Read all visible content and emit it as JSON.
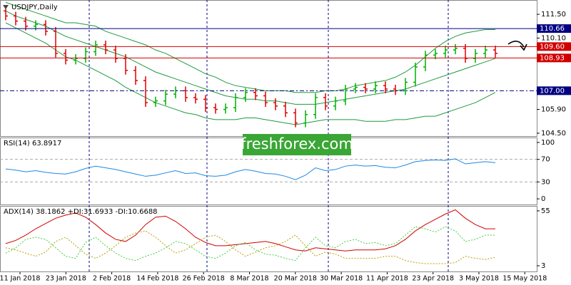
{
  "watermark": "freshforex.com",
  "chart_data": [
    {
      "type": "candlestick",
      "title": "USDJPY,Daily",
      "x_labels": [
        "11 Jan 2018",
        "23 Jan 2018",
        "2 Feb 2018",
        "14 Feb 2018",
        "26 Feb 2018",
        "8 Mar 2018",
        "20 Mar 2018",
        "30 Mar 2018",
        "11 Apr 2018",
        "23 Apr 2018",
        "3 May 2018",
        "15 May 2018"
      ],
      "open": [
        111.7,
        111.4,
        111.1,
        110.8,
        110.9,
        110.5,
        109.2,
        108.8,
        108.9,
        109.3,
        109.7,
        109.4,
        108.9,
        108.2,
        107.6,
        106.3,
        106.4,
        106.8,
        107.0,
        106.6,
        106.5,
        106.0,
        105.9,
        106.0,
        106.6,
        106.9,
        106.7,
        106.3,
        106.1,
        105.7,
        105.1,
        105.6,
        106.6,
        106.1,
        106.4,
        107.1,
        107.2,
        107.1,
        107.3,
        107.1,
        107.0,
        107.5,
        108.4,
        109.1,
        109.2,
        109.4,
        109.5,
        108.9,
        109.2,
        109.4
      ],
      "high": [
        111.95,
        111.65,
        111.35,
        111.15,
        111.15,
        110.75,
        109.45,
        109.15,
        109.55,
        109.95,
        109.95,
        109.65,
        109.15,
        108.45,
        107.85,
        106.65,
        107.05,
        107.25,
        107.25,
        106.85,
        106.75,
        106.25,
        106.25,
        106.85,
        107.15,
        107.15,
        106.95,
        106.55,
        106.35,
        105.95,
        105.85,
        106.85,
        106.85,
        106.65,
        107.35,
        107.45,
        107.45,
        107.55,
        107.55,
        107.35,
        107.75,
        108.65,
        109.35,
        109.45,
        109.65,
        109.75,
        109.75,
        109.45,
        109.65,
        109.65
      ],
      "low": [
        111.15,
        110.85,
        110.55,
        110.55,
        110.25,
        108.95,
        108.55,
        108.55,
        108.65,
        109.05,
        109.15,
        108.65,
        107.95,
        107.35,
        106.05,
        106.05,
        106.15,
        106.55,
        106.35,
        106.25,
        105.75,
        105.65,
        105.65,
        105.75,
        106.35,
        106.45,
        106.05,
        105.85,
        105.45,
        104.85,
        104.85,
        105.35,
        105.85,
        105.85,
        106.15,
        106.85,
        106.85,
        106.85,
        106.85,
        106.75,
        106.75,
        107.25,
        108.15,
        108.85,
        108.95,
        109.15,
        108.65,
        108.65,
        108.95,
        108.95
      ],
      "close": [
        111.4,
        111.1,
        110.8,
        110.9,
        110.5,
        109.2,
        108.8,
        108.9,
        109.3,
        109.7,
        109.4,
        108.9,
        108.2,
        107.6,
        106.3,
        106.4,
        106.8,
        107.0,
        106.6,
        106.5,
        106.0,
        105.9,
        106.0,
        106.6,
        106.9,
        106.7,
        106.3,
        106.1,
        105.7,
        105.1,
        105.6,
        106.6,
        106.1,
        106.4,
        107.1,
        107.2,
        107.1,
        107.3,
        107.1,
        107.0,
        107.5,
        108.4,
        109.1,
        109.2,
        109.4,
        109.5,
        108.9,
        109.2,
        109.4,
        109.2
      ],
      "up_color": "#00b000",
      "down_color": "#e00000",
      "bands": [
        {
          "color": "#1e9a3c",
          "values": [
            112.2,
            112.0,
            111.8,
            111.6,
            111.4,
            111.2,
            111.0,
            111.0,
            110.9,
            110.8,
            110.5,
            110.3,
            110.1,
            109.9,
            109.7,
            109.4,
            109.2,
            108.9,
            108.6,
            108.3,
            108.0,
            107.8,
            107.5,
            107.3,
            107.2,
            107.1,
            107.0,
            107.0,
            107.0,
            106.9,
            106.9,
            106.9,
            107.0,
            107.0,
            107.1,
            107.3,
            107.4,
            107.5,
            107.6,
            107.8,
            108.1,
            108.5,
            109.0,
            109.5,
            109.9,
            110.2,
            110.4,
            110.5,
            110.6,
            110.6
          ]
        },
        {
          "color": "#1e9a3c",
          "values": [
            111.7,
            111.4,
            111.2,
            111.0,
            110.8,
            110.5,
            110.2,
            110.0,
            109.8,
            109.6,
            109.4,
            109.2,
            109.0,
            108.7,
            108.4,
            108.1,
            107.9,
            107.7,
            107.5,
            107.3,
            107.1,
            106.9,
            106.7,
            106.6,
            106.5,
            106.5,
            106.4,
            106.4,
            106.3,
            106.2,
            106.2,
            106.2,
            106.3,
            106.4,
            106.5,
            106.6,
            106.7,
            106.8,
            106.9,
            107.0,
            107.1,
            107.3,
            107.5,
            107.7,
            107.9,
            108.1,
            108.3,
            108.5,
            108.7,
            108.9
          ]
        },
        {
          "color": "#1e9a3c",
          "values": [
            111.0,
            110.7,
            110.4,
            110.1,
            109.8,
            109.4,
            109.0,
            108.8,
            108.5,
            108.2,
            107.9,
            107.6,
            107.2,
            106.9,
            106.6,
            106.3,
            106.1,
            105.9,
            105.7,
            105.6,
            105.4,
            105.3,
            105.3,
            105.3,
            105.4,
            105.4,
            105.3,
            105.2,
            105.1,
            105.0,
            105.1,
            105.2,
            105.3,
            105.3,
            105.3,
            105.3,
            105.2,
            105.2,
            105.2,
            105.3,
            105.3,
            105.4,
            105.5,
            105.5,
            105.7,
            105.9,
            106.1,
            106.3,
            106.6,
            106.9
          ]
        }
      ],
      "levels": [
        {
          "value": 110.66,
          "color": "#000080",
          "dash": "solid"
        },
        {
          "value": 109.6,
          "label": "109.60",
          "color": "#d00000",
          "dash": "solid"
        },
        {
          "value": 108.93,
          "color": "#d00000",
          "dash": "solid"
        },
        {
          "value": 107.0,
          "label": "107.00",
          "color": "#000080",
          "dash": "dashdot"
        }
      ],
      "ylim": [
        104.33,
        112.3
      ],
      "yticks": [
        {
          "value": 111.5,
          "label": "111.50"
        },
        {
          "value": 110.1,
          "label": "110.10"
        },
        {
          "value": 105.9,
          "label": "105.90"
        },
        {
          "value": 104.5,
          "label": "104.50"
        }
      ]
    },
    {
      "type": "line",
      "title": "RSI(14) 63.8917",
      "series": [
        {
          "color": "#1e88e5",
          "dash": "solid",
          "values": [
            53,
            51,
            48,
            50,
            47,
            45,
            44,
            48,
            54,
            58,
            55,
            52,
            48,
            44,
            40,
            42,
            46,
            50,
            45,
            46,
            41,
            40,
            42,
            48,
            52,
            49,
            45,
            44,
            40,
            34,
            42,
            55,
            50,
            52,
            58,
            60,
            58,
            59,
            56,
            55,
            60,
            66,
            68,
            69,
            68,
            71,
            62,
            64,
            66,
            64
          ]
        }
      ],
      "levels": [
        70,
        30
      ],
      "ylim": [
        -10,
        107.5
      ],
      "yticks": [
        100,
        70,
        30,
        0
      ]
    },
    {
      "type": "line",
      "title": "ADX(14) 38.1862 +DI:31.6933 -DI:10.6688",
      "series": [
        {
          "color": "#d00000",
          "dash": "solid",
          "values": [
            24,
            27,
            32,
            38,
            43,
            48,
            51,
            53,
            49,
            42,
            34,
            28,
            26,
            32,
            42,
            49,
            50,
            45,
            38,
            30,
            25,
            22,
            22,
            23,
            24,
            25,
            26,
            24,
            21,
            18,
            17,
            20,
            19,
            18,
            17,
            18,
            18,
            18,
            19,
            22,
            28,
            36,
            42,
            47,
            52,
            56,
            48,
            42,
            38,
            38
          ]
        },
        {
          "color": "#44cc44",
          "dash": "dotted",
          "values": [
            15,
            20,
            28,
            30,
            28,
            20,
            12,
            10,
            25,
            30,
            22,
            15,
            10,
            8,
            12,
            15,
            20,
            26,
            24,
            18,
            12,
            10,
            15,
            22,
            25,
            18,
            14,
            13,
            10,
            8,
            20,
            30,
            22,
            20,
            26,
            28,
            24,
            25,
            22,
            24,
            32,
            40,
            38,
            35,
            40,
            36,
            26,
            28,
            32,
            32
          ]
        },
        {
          "color": "#b8a000",
          "dash": "dotted",
          "values": [
            20,
            18,
            15,
            12,
            16,
            26,
            30,
            22,
            14,
            10,
            15,
            22,
            30,
            34,
            36,
            30,
            22,
            15,
            18,
            24,
            30,
            32,
            26,
            18,
            12,
            16,
            20,
            22,
            26,
            32,
            22,
            12,
            16,
            14,
            10,
            10,
            10,
            10,
            12,
            12,
            8,
            6,
            5,
            5,
            5,
            6,
            12,
            10,
            9,
            11
          ]
        }
      ],
      "ylim": [
        -2.4,
        59
      ],
      "yticks": [
        55,
        3
      ]
    }
  ]
}
